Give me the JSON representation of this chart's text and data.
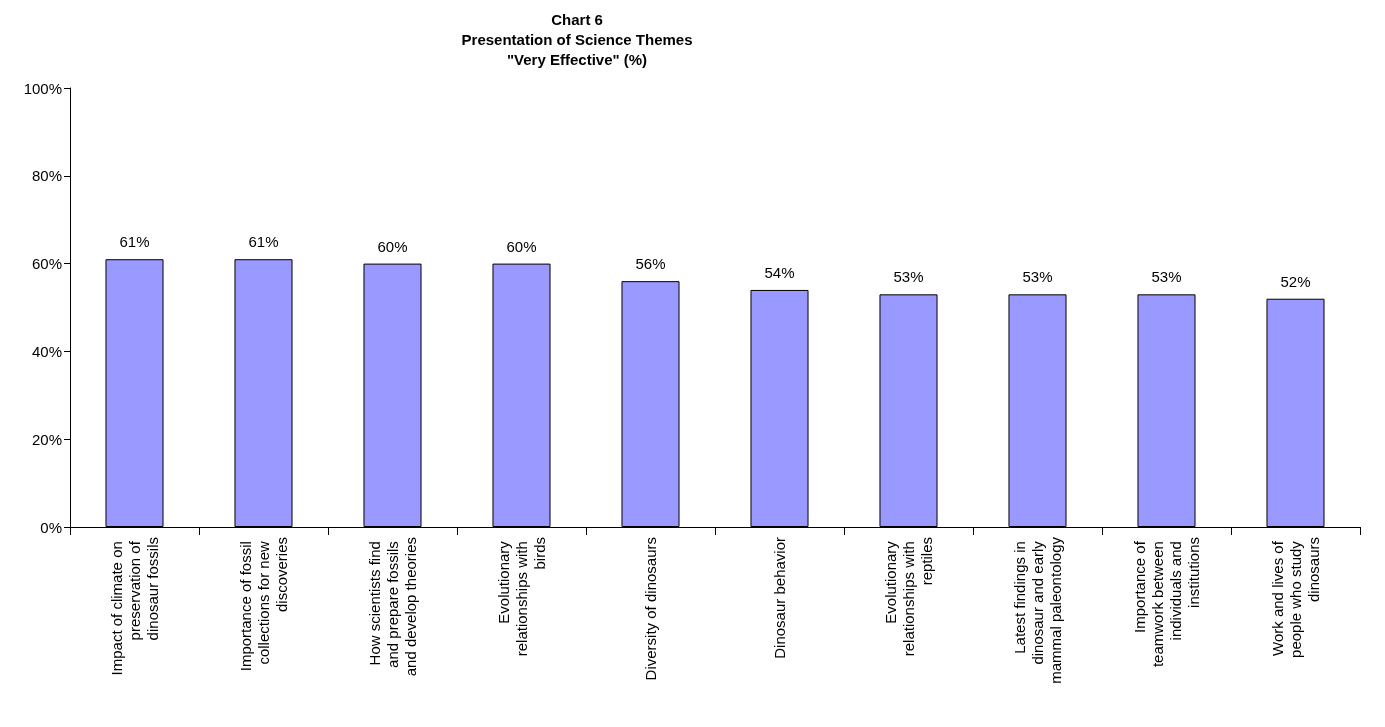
{
  "chart_data": {
    "type": "bar",
    "title": "Chart 6",
    "subtitle": "Presentation of Science Themes\n\"Very Effective\" (%)",
    "categories": [
      "Impact of climate on preservation of dinosaur fossils",
      "Importance of fossil collections for new discoveries",
      "How scientists find and prepare fossils and develop theories",
      "Evolutionary relationships with birds",
      "Diversity of dinosaurs",
      "Dinosaur behavior",
      "Evolutionary relationships with reptiles",
      "Latest findings in dinosaur and early mammal paleontology",
      "Importance of teamwork between individuals and institutions",
      "Work and lives of people who study dinosaurs"
    ],
    "values": [
      61,
      61,
      60,
      60,
      56,
      54,
      53,
      53,
      53,
      52
    ],
    "value_labels": [
      "61%",
      "61%",
      "60%",
      "60%",
      "56%",
      "54%",
      "53%",
      "53%",
      "53%",
      "52%"
    ],
    "color": "#9999ff",
    "ylim": [
      0,
      100
    ],
    "yticks": [
      {
        "value": 0,
        "label": "0%"
      },
      {
        "value": 20,
        "label": "20%"
      },
      {
        "value": 40,
        "label": "40%"
      },
      {
        "value": 60,
        "label": "60%"
      },
      {
        "value": 80,
        "label": "80%"
      },
      {
        "value": 100,
        "label": "100%"
      }
    ],
    "grid": false
  }
}
